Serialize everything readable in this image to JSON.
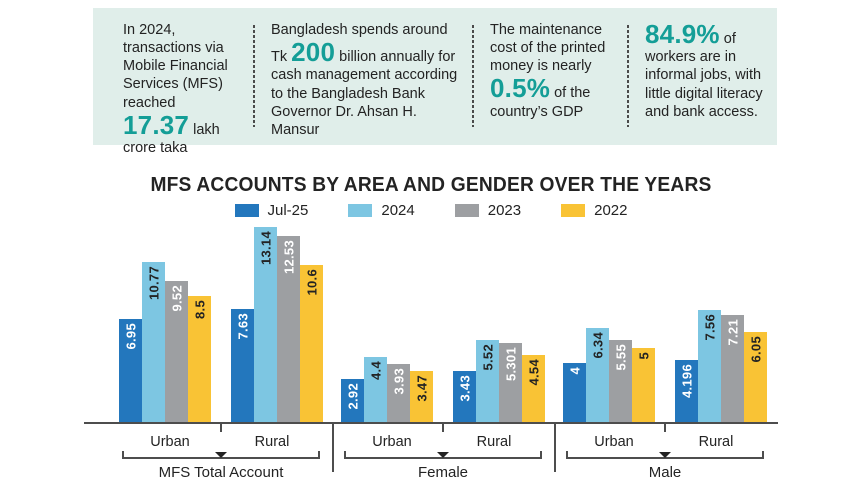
{
  "colors": {
    "panel_bg": "#e0eeea",
    "accent_teal": "#149e97",
    "text": "#232323",
    "axis": "#4d4d4d"
  },
  "stats_panel": {
    "boxes": [
      {
        "segments": [
          {
            "text": "In 2024, transactions via Mobile Financial Services (MFS) reached "
          },
          {
            "text": "17.37",
            "big": true
          },
          {
            "text": " lakh crore taka"
          }
        ]
      },
      {
        "segments": [
          {
            "text": "Bangladesh spends around Tk "
          },
          {
            "text": "200",
            "big": true
          },
          {
            "text": " billion annually for cash management according to the Bangladesh Bank Governor Dr. Ahsan H. Mansur"
          }
        ]
      },
      {
        "segments": [
          {
            "text": "The maintenance cost of the printed money is nearly "
          },
          {
            "text": "0.5%",
            "big": true
          },
          {
            "text": " of the country’s GDP"
          }
        ]
      },
      {
        "segments": [
          {
            "text": "84.9%",
            "big": true
          },
          {
            "text": " of workers are in informal jobs, with little digital literacy and bank access."
          }
        ]
      }
    ]
  },
  "chart_data": {
    "type": "bar",
    "title": "MFS ACCOUNTS BY AREA AND GENDER OVER THE YEARS",
    "legend_position": "top",
    "grid": false,
    "ylim": [
      0,
      13.14
    ],
    "series": [
      {
        "name": "Jul-25",
        "color": "#2377bd",
        "label_color": "#ffffff"
      },
      {
        "name": "2024",
        "color": "#7dc6e2",
        "label_color": "#232323"
      },
      {
        "name": "2023",
        "color": "#9d9fa2",
        "label_color": "#ffffff"
      },
      {
        "name": "2022",
        "color": "#f9c335",
        "label_color": "#232323"
      }
    ],
    "groups": [
      {
        "label": "MFS Total Account",
        "subgroups": [
          {
            "label": "Urban",
            "values": [
              "6.95",
              "10.77",
              "9.52",
              "8.5"
            ]
          },
          {
            "label": "Rural",
            "values": [
              "7.63",
              "13.14",
              "12.53",
              "10.6"
            ]
          }
        ]
      },
      {
        "label": "Female",
        "subgroups": [
          {
            "label": "Urban",
            "values": [
              "2.92",
              "4.4",
              "3.93",
              "3.47"
            ]
          },
          {
            "label": "Rural",
            "values": [
              "3.43",
              "5.52",
              "5.301",
              "4.54"
            ]
          }
        ]
      },
      {
        "label": "Male",
        "subgroups": [
          {
            "label": "Urban",
            "values": [
              "4",
              "6.34",
              "5.55",
              "5"
            ]
          },
          {
            "label": "Rural",
            "values": [
              "4.196",
              "7.56",
              "7.21",
              "6.05"
            ]
          }
        ]
      }
    ]
  }
}
